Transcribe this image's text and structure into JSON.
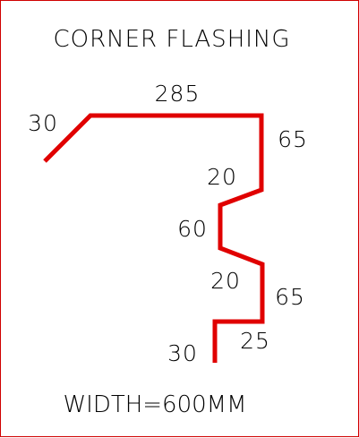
{
  "title": "CORNER FLASHING",
  "footer": "WIDTH=600MM",
  "colors": {
    "profile": "#e00000",
    "border": "#d00000",
    "text": "#000000"
  },
  "profile_dimensions": [
    {
      "id": "lip_top",
      "label": "30"
    },
    {
      "id": "top",
      "label": "285"
    },
    {
      "id": "right_upper",
      "label": "65"
    },
    {
      "id": "step_upper",
      "label": "20"
    },
    {
      "id": "recess",
      "label": "60"
    },
    {
      "id": "step_lower",
      "label": "20"
    },
    {
      "id": "right_lower",
      "label": "65"
    },
    {
      "id": "foot",
      "label": "25"
    },
    {
      "id": "lip_bottom",
      "label": "30"
    }
  ]
}
